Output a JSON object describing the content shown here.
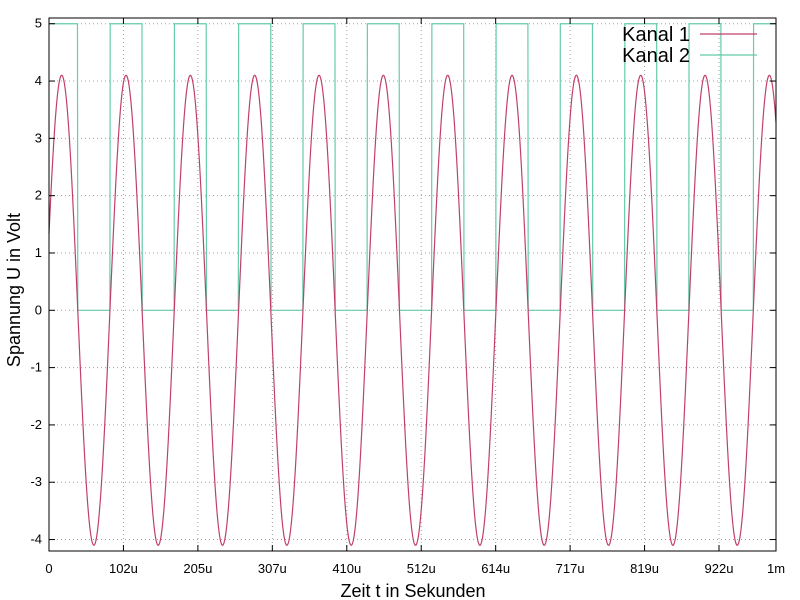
{
  "chart_data": {
    "type": "line",
    "title": "",
    "xlabel": "Zeit t in Sekunden",
    "ylabel": "Spannung U in Volt",
    "xlim": [
      0,
      0.001
    ],
    "ylim": [
      -4.2,
      5.1
    ],
    "grid": true,
    "legend_position": "top-right",
    "x_ticks": [
      {
        "value": 0,
        "label": "0"
      },
      {
        "value": 0.0001024,
        "label": "102u"
      },
      {
        "value": 0.0002048,
        "label": "205u"
      },
      {
        "value": 0.0003072,
        "label": "307u"
      },
      {
        "value": 0.0004096,
        "label": "410u"
      },
      {
        "value": 0.000512,
        "label": "512u"
      },
      {
        "value": 0.0006144,
        "label": "614u"
      },
      {
        "value": 0.0007168,
        "label": "717u"
      },
      {
        "value": 0.0008192,
        "label": "819u"
      },
      {
        "value": 0.0009216,
        "label": "922u"
      },
      {
        "value": 0.001,
        "label": "1m"
      }
    ],
    "y_ticks": [
      {
        "value": -4,
        "label": "-4"
      },
      {
        "value": -3,
        "label": "-3"
      },
      {
        "value": -2,
        "label": "-2"
      },
      {
        "value": -1,
        "label": "-1"
      },
      {
        "value": 0,
        "label": "0"
      },
      {
        "value": 1,
        "label": "1"
      },
      {
        "value": 2,
        "label": "2"
      },
      {
        "value": 3,
        "label": "3"
      },
      {
        "value": 4,
        "label": "4"
      },
      {
        "value": 5,
        "label": "5"
      }
    ],
    "series": [
      {
        "name": "Kanal 1",
        "color": "#c0406b",
        "waveform": "sine",
        "amplitude": 4.1,
        "offset": 0.0,
        "frequency": 11300,
        "phase_deg": 19
      },
      {
        "name": "Kanal 2",
        "color": "#66ccaa",
        "waveform": "square",
        "high": 5.0,
        "low": 0.0,
        "frequency": 11300,
        "phase_deg": 19
      }
    ]
  }
}
